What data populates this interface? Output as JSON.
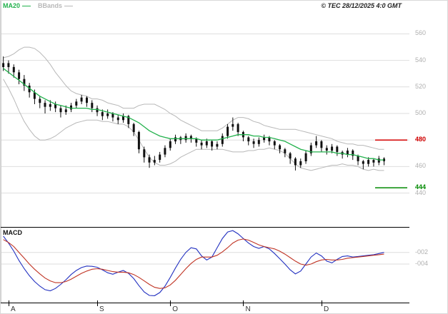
{
  "window": {
    "title": "© TEC 28/12/2025 4:0 GMT"
  },
  "legend": {
    "ma20_label": "MA20",
    "bbands_label": "BBands"
  },
  "macd_panel": {
    "label": "MACD"
  },
  "chart_data": [
    {
      "type": "candlestick",
      "panel": "price",
      "title": "© TEC 28/12/2025 4:0 GMT",
      "ylim": [
        415,
        585
      ],
      "yticks": [
        560,
        540,
        520,
        500,
        480,
        460,
        440
      ],
      "x_ticks": [
        {
          "label": "A",
          "index": 1
        },
        {
          "label": "S",
          "index": 18
        },
        {
          "label": "O",
          "index": 32
        },
        {
          "label": "N",
          "index": 46
        },
        {
          "label": "D",
          "index": 61
        }
      ],
      "levels": [
        {
          "name": "resistance",
          "label": "480",
          "value": 480,
          "color": "#d40000"
        },
        {
          "name": "support",
          "label": "444",
          "value": 444,
          "color": "#008a00"
        }
      ],
      "colors": {
        "candle": "#111111",
        "ma20": "#22b14c",
        "bband": "#b8b8b8",
        "grid": "#dedede"
      },
      "series": {
        "candles_ohlc": [
          [
            535,
            543,
            532,
            538
          ],
          [
            538,
            540,
            530,
            535
          ],
          [
            535,
            537,
            527,
            531
          ],
          [
            531,
            533,
            522,
            526
          ],
          [
            526,
            529,
            517,
            521
          ],
          [
            521,
            523,
            512,
            516
          ],
          [
            516,
            518,
            507,
            511
          ],
          [
            511,
            513,
            504,
            508
          ],
          [
            508,
            510,
            500,
            505
          ],
          [
            505,
            510,
            502,
            507
          ],
          [
            507,
            509,
            501,
            504
          ],
          [
            504,
            506,
            497,
            501
          ],
          [
            501,
            506,
            499,
            503
          ],
          [
            503,
            508,
            501,
            506
          ],
          [
            506,
            511,
            504,
            509
          ],
          [
            509,
            514,
            507,
            512
          ],
          [
            512,
            513,
            505,
            508
          ],
          [
            508,
            510,
            501,
            504
          ],
          [
            504,
            506,
            498,
            501
          ],
          [
            501,
            503,
            495,
            498
          ],
          [
            498,
            503,
            496,
            500
          ],
          [
            500,
            501,
            494,
            497
          ],
          [
            497,
            499,
            492,
            495
          ],
          [
            495,
            500,
            493,
            498
          ],
          [
            498,
            499,
            489,
            492
          ],
          [
            492,
            493,
            483,
            486
          ],
          [
            486,
            487,
            470,
            473
          ],
          [
            473,
            475,
            463,
            467
          ],
          [
            467,
            469,
            459,
            463
          ],
          [
            463,
            468,
            461,
            465
          ],
          [
            465,
            471,
            463,
            469
          ],
          [
            469,
            476,
            467,
            474
          ],
          [
            474,
            481,
            472,
            479
          ],
          [
            479,
            484,
            477,
            482
          ],
          [
            482,
            483,
            477,
            480
          ],
          [
            480,
            485,
            478,
            483
          ],
          [
            483,
            484,
            478,
            481
          ],
          [
            481,
            482,
            475,
            478
          ],
          [
            478,
            480,
            473,
            476
          ],
          [
            476,
            481,
            474,
            479
          ],
          [
            479,
            480,
            472,
            475
          ],
          [
            475,
            479,
            473,
            477
          ],
          [
            477,
            485,
            475,
            483
          ],
          [
            483,
            492,
            481,
            490
          ],
          [
            490,
            497,
            487,
            492
          ],
          [
            492,
            493,
            483,
            486
          ],
          [
            486,
            487,
            479,
            482
          ],
          [
            482,
            483,
            476,
            479
          ],
          [
            479,
            481,
            474,
            477
          ],
          [
            477,
            482,
            475,
            480
          ],
          [
            480,
            484,
            478,
            482
          ],
          [
            482,
            483,
            476,
            479
          ],
          [
            479,
            480,
            473,
            476
          ],
          [
            476,
            477,
            470,
            473
          ],
          [
            473,
            474,
            467,
            470
          ],
          [
            470,
            471,
            462,
            466
          ],
          [
            466,
            467,
            457,
            461
          ],
          [
            461,
            466,
            459,
            464
          ],
          [
            464,
            472,
            462,
            470
          ],
          [
            470,
            478,
            468,
            476
          ],
          [
            476,
            483,
            474,
            479
          ],
          [
            479,
            480,
            471,
            474
          ],
          [
            474,
            476,
            469,
            472
          ],
          [
            472,
            477,
            470,
            475
          ],
          [
            475,
            476,
            468,
            471
          ],
          [
            471,
            472,
            466,
            469
          ],
          [
            469,
            474,
            467,
            472
          ],
          [
            472,
            473,
            465,
            468
          ],
          [
            468,
            469,
            461,
            464
          ],
          [
            464,
            465,
            458,
            462
          ],
          [
            462,
            467,
            460,
            465
          ],
          [
            465,
            466,
            460,
            463
          ],
          [
            463,
            468,
            461,
            466
          ],
          [
            466,
            467,
            461,
            464
          ]
        ],
        "ma20": [
          534,
          531,
          528,
          525,
          522,
          519,
          516,
          513,
          511,
          509,
          507,
          506,
          505,
          504,
          504,
          504,
          504,
          503,
          503,
          502,
          501,
          500,
          499,
          498,
          497,
          495,
          493,
          490,
          487,
          485,
          483,
          482,
          481,
          481,
          481,
          481,
          481,
          481,
          480,
          480,
          480,
          480,
          481,
          482,
          483,
          484,
          484,
          484,
          483,
          483,
          482,
          482,
          481,
          480,
          479,
          477,
          475,
          473,
          472,
          471,
          471,
          471,
          471,
          471,
          470,
          470,
          469,
          469,
          468,
          467,
          466,
          466,
          465,
          465
        ],
        "bb_spread": [
          8,
          12,
          17,
          23,
          28,
          31,
          33,
          33,
          31,
          28,
          24,
          20,
          16,
          13,
          11,
          10,
          9,
          8,
          8,
          8,
          7,
          7,
          7,
          6,
          7,
          9,
          13,
          17,
          20,
          22,
          22,
          21,
          19,
          17,
          14,
          12,
          10,
          8,
          7,
          7,
          7,
          7,
          8,
          10,
          12,
          13,
          13,
          12,
          11,
          10,
          9,
          8,
          8,
          8,
          9,
          11,
          13,
          14,
          14,
          14,
          13,
          12,
          11,
          10,
          9,
          8,
          8,
          8,
          8,
          9,
          9,
          8,
          8,
          8
        ]
      }
    },
    {
      "type": "line",
      "panel": "macd",
      "label": "MACD",
      "ylim": [
        -0.105,
        0.0225
      ],
      "yticks": [
        {
          "label": "-002",
          "value": -0.02
        },
        {
          "label": "-004",
          "value": -0.04
        }
      ],
      "series": [
        {
          "name": "MACD",
          "color": "#2230c0",
          "values": [
            0.008,
            -0.004,
            -0.018,
            -0.034,
            -0.048,
            -0.06,
            -0.07,
            -0.078,
            -0.084,
            -0.086,
            -0.082,
            -0.075,
            -0.067,
            -0.058,
            -0.051,
            -0.046,
            -0.0435,
            -0.044,
            -0.0455,
            -0.05,
            -0.055,
            -0.0575,
            -0.054,
            -0.051,
            -0.056,
            -0.065,
            -0.077,
            -0.088,
            -0.094,
            -0.0945,
            -0.089,
            -0.078,
            -0.063,
            -0.047,
            -0.032,
            -0.02,
            -0.012,
            -0.014,
            -0.026,
            -0.033,
            -0.028,
            -0.012,
            0.004,
            0.015,
            0.0175,
            0.012,
            0.004,
            -0.004,
            -0.01,
            -0.013,
            -0.01,
            -0.014,
            -0.022,
            -0.031,
            -0.04,
            -0.05,
            -0.057,
            -0.052,
            -0.04,
            -0.028,
            -0.021,
            -0.026,
            -0.035,
            -0.038,
            -0.032,
            -0.027,
            -0.026,
            -0.028,
            -0.027,
            -0.026,
            -0.025,
            -0.024,
            -0.022,
            -0.02
          ]
        },
        {
          "name": "Signal",
          "color": "#c03424",
          "values": [
            0.002,
            -0.003,
            -0.01,
            -0.02,
            -0.03,
            -0.04,
            -0.049,
            -0.057,
            -0.064,
            -0.069,
            -0.072,
            -0.072,
            -0.07,
            -0.066,
            -0.061,
            -0.056,
            -0.052,
            -0.049,
            -0.048,
            -0.049,
            -0.051,
            -0.053,
            -0.054,
            -0.054,
            -0.055,
            -0.058,
            -0.063,
            -0.069,
            -0.075,
            -0.08,
            -0.082,
            -0.081,
            -0.076,
            -0.068,
            -0.058,
            -0.048,
            -0.039,
            -0.032,
            -0.028,
            -0.028,
            -0.028,
            -0.025,
            -0.019,
            -0.012,
            -0.004,
            0.001,
            0.003,
            0.001,
            -0.003,
            -0.007,
            -0.01,
            -0.012,
            -0.014,
            -0.018,
            -0.023,
            -0.029,
            -0.035,
            -0.04,
            -0.042,
            -0.04,
            -0.036,
            -0.033,
            -0.032,
            -0.033,
            -0.033,
            -0.032,
            -0.03,
            -0.029,
            -0.028,
            -0.027,
            -0.026,
            -0.025,
            -0.024,
            -0.023
          ]
        }
      ]
    }
  ]
}
